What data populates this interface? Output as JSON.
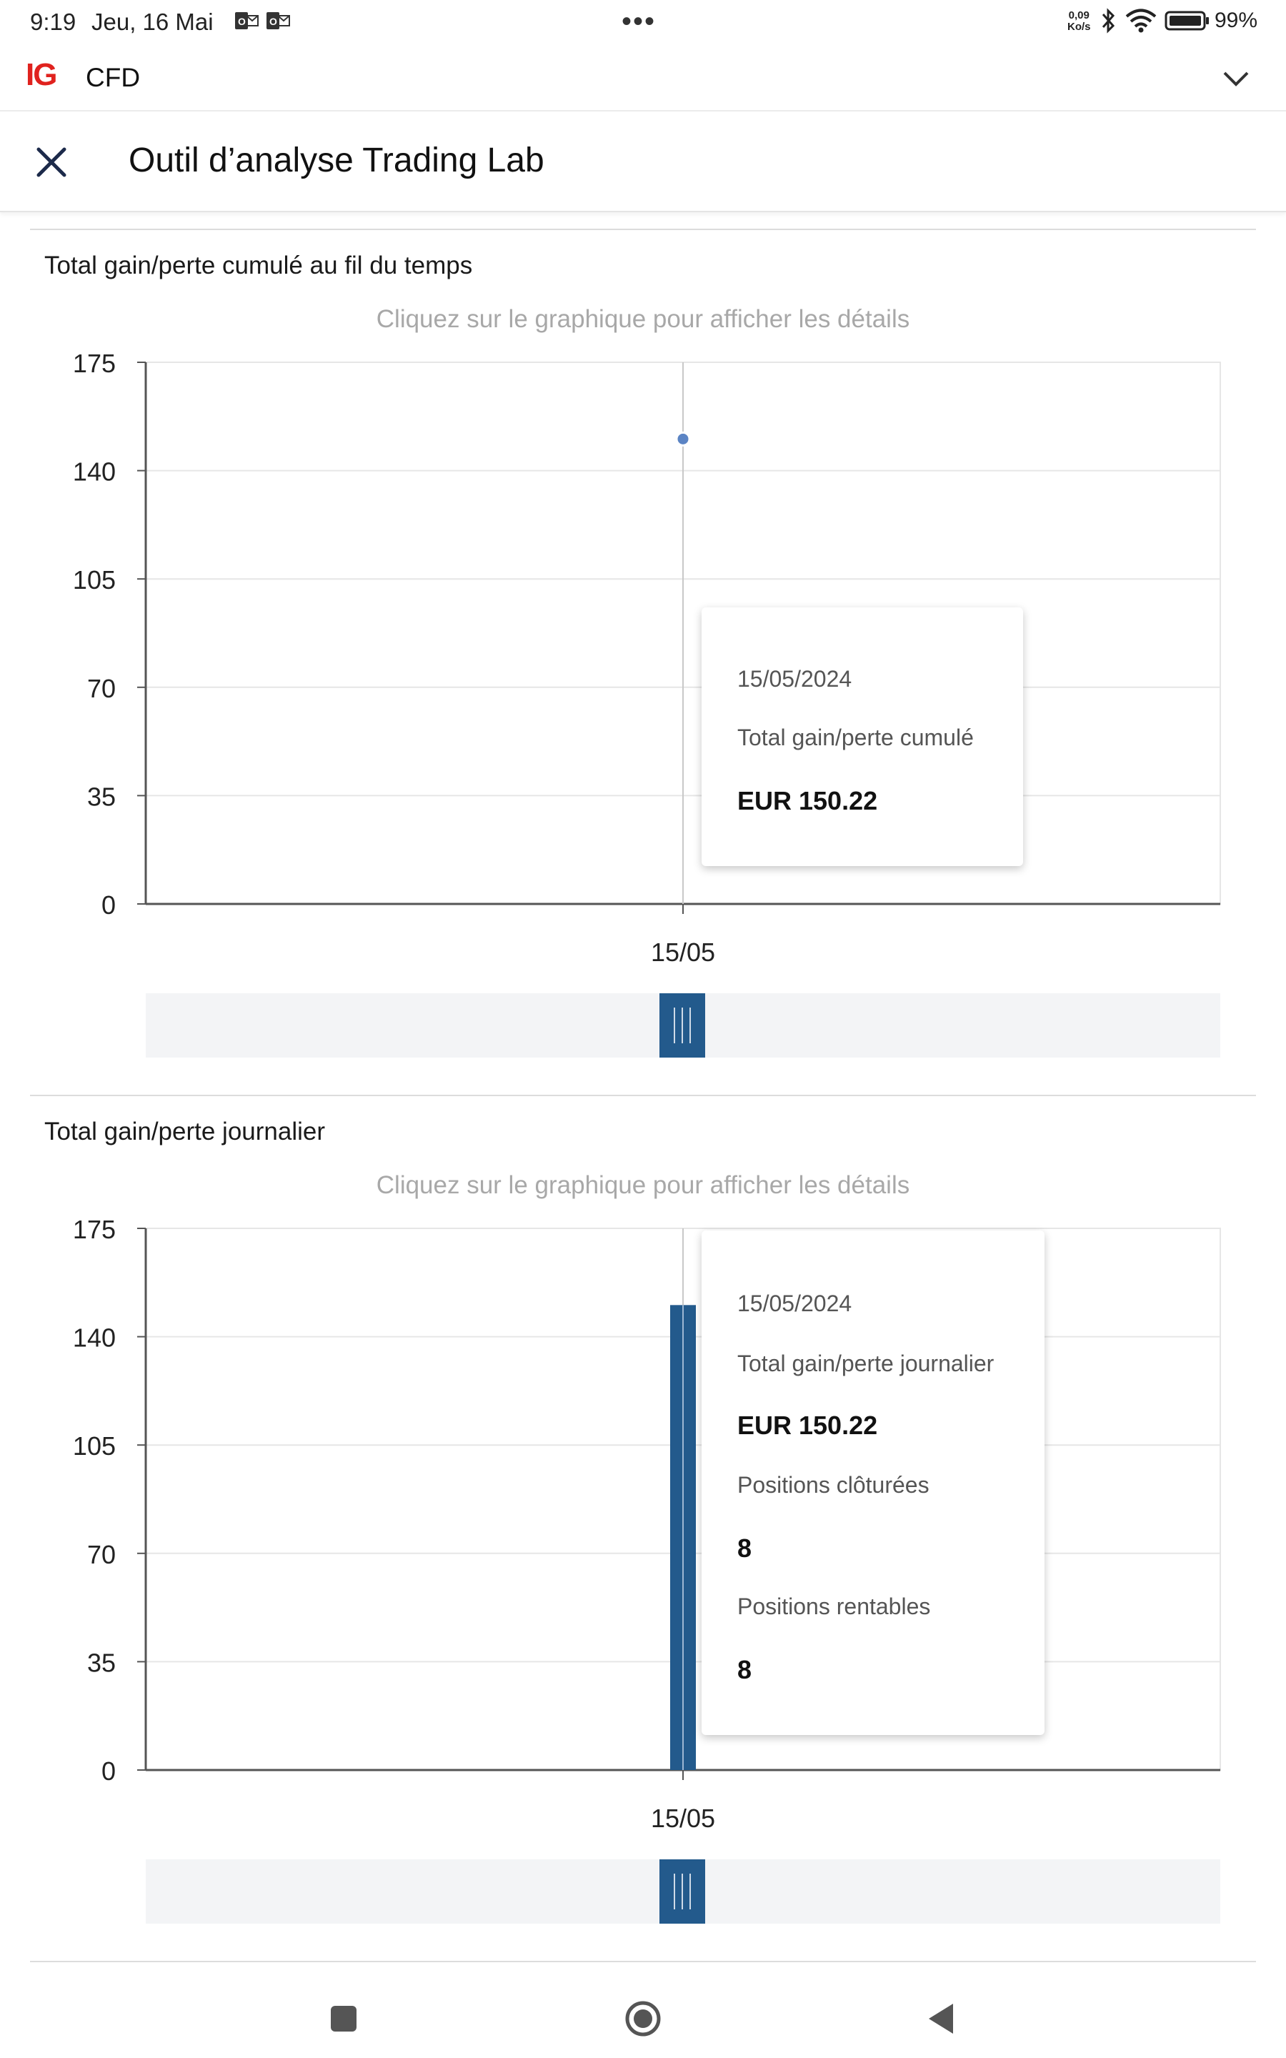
{
  "status_bar": {
    "time": "9:19",
    "date": "Jeu, 16 Mai",
    "speed_value": "0,09",
    "speed_unit": "Ko/s",
    "battery": "99%"
  },
  "app_bar": {
    "logo": "IG",
    "account": "CFD",
    "chevron_icon": "chevron-down-icon"
  },
  "title_bar": {
    "title": "Outil d’analyse Trading Lab",
    "close_icon": "close-icon"
  },
  "charts": [
    {
      "title": "Total gain/perte cumulé au fil du temps",
      "hint": "Cliquez sur le graphique pour afficher les détails",
      "tooltip": {
        "date": "15/05/2024",
        "label": "Total gain/perte cumulé",
        "value": "EUR 150.22"
      }
    },
    {
      "title": "Total gain/perte journalier",
      "hint": "Cliquez sur le graphique pour afficher les détails",
      "tooltip": {
        "date": "15/05/2024",
        "label": "Total gain/perte journalier",
        "value": "EUR 150.22",
        "closed_label": "Positions clôturées",
        "closed_value": "8",
        "profitable_label": "Positions rentables",
        "profitable_value": "8"
      }
    }
  ],
  "chart_data": [
    {
      "type": "scatter",
      "title": "Total gain/perte cumulé au fil du temps",
      "categories": [
        "15/05"
      ],
      "values": [
        150.22
      ],
      "yticks": [
        0,
        35,
        70,
        105,
        140,
        175
      ],
      "ylim": [
        0,
        175
      ],
      "grid": true,
      "color": "#5b84c4"
    },
    {
      "type": "bar",
      "title": "Total gain/perte journalier",
      "categories": [
        "15/05"
      ],
      "values": [
        150.22
      ],
      "yticks": [
        0,
        35,
        70,
        105,
        140,
        175
      ],
      "ylim": [
        0,
        175
      ],
      "grid": true,
      "color": "#235a8c"
    }
  ],
  "colors": {
    "brand_red": "#e0221e",
    "bar_blue": "#235a8c",
    "point_blue": "#5b84c4",
    "scroller_bg": "#f3f4f6"
  },
  "nav_bar": {
    "recents_icon": "recents-icon",
    "home_icon": "home-icon",
    "back_icon": "back-icon"
  }
}
